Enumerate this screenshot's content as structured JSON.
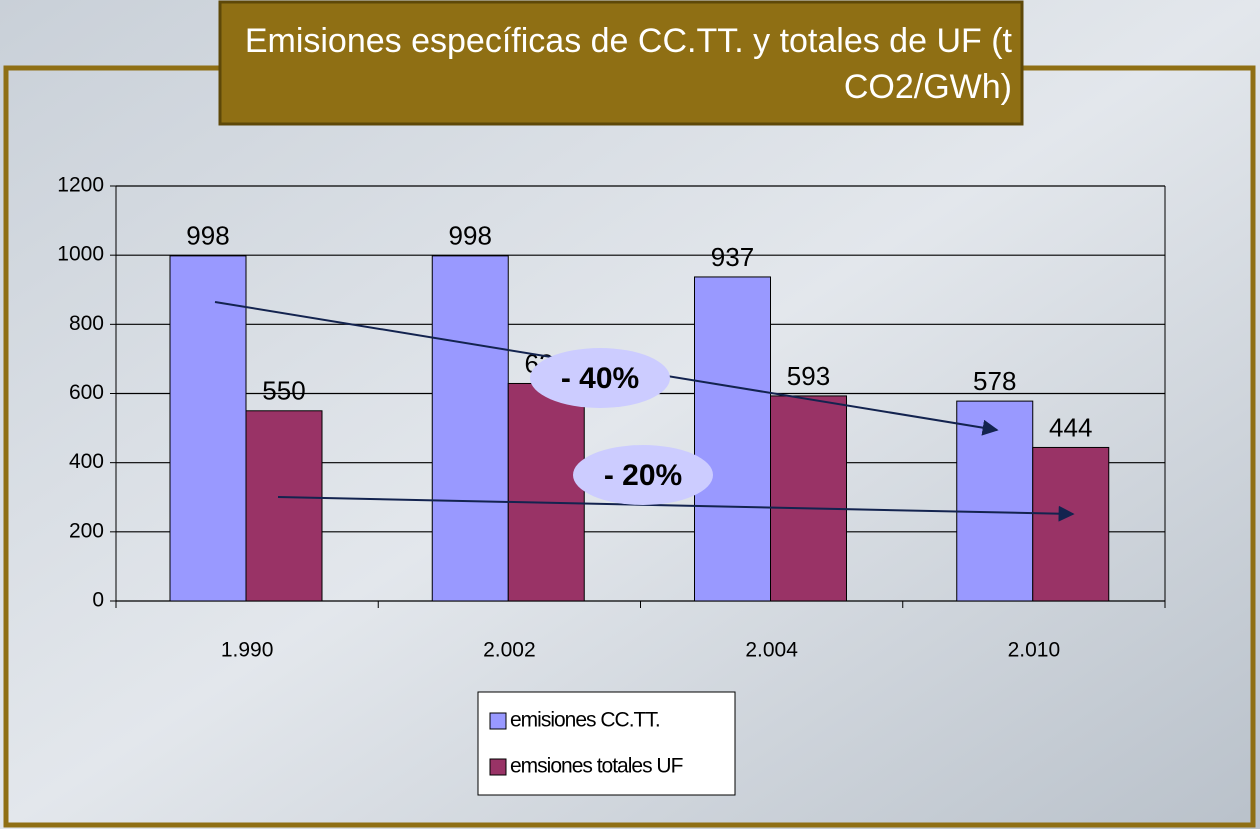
{
  "chart_data": {
    "type": "bar",
    "title": "Emisiones específicas de CC.TT. y totales de UF (t CO2/GWh)",
    "categories": [
      "1.990",
      "2.002",
      "2.004",
      "2.010"
    ],
    "series": [
      {
        "name": "emisiones CC.TT.",
        "color": "#9999ff",
        "values": [
          998,
          998,
          937,
          578
        ]
      },
      {
        "name": "emsiones totales UF",
        "color": "#993366",
        "values": [
          550,
          629,
          593,
          444
        ]
      }
    ],
    "ylim": [
      0,
      1200
    ],
    "yticks": [
      0,
      200,
      400,
      600,
      800,
      1000,
      1200
    ],
    "grid": true,
    "annotations": [
      "- 40%",
      "- 20%"
    ]
  }
}
